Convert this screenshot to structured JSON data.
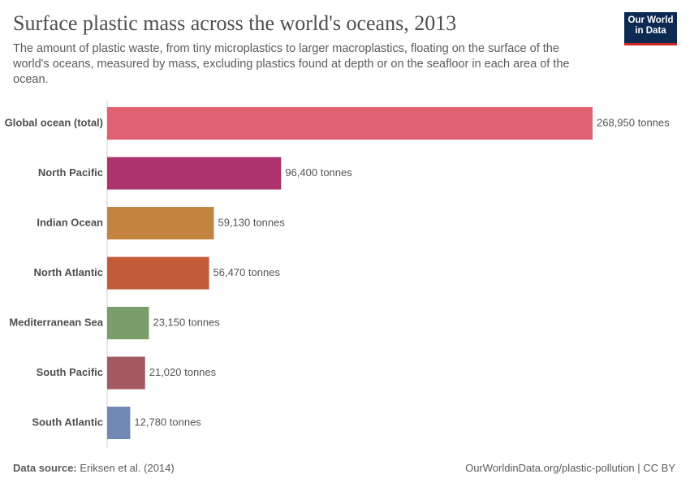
{
  "chart_data": {
    "type": "bar",
    "orientation": "horizontal",
    "title": "Surface plastic mass across the world's oceans, 2013",
    "subtitle": "The amount of plastic waste, from tiny microplastics to larger macroplastics, floating on the surface of the world's oceans, measured by mass, excluding plastics found at depth or on the seafloor in each area of the ocean.",
    "categories": [
      "Global ocean (total)",
      "North Pacific",
      "Indian Ocean",
      "North Atlantic",
      "Mediterranean Sea",
      "South Pacific",
      "South Atlantic"
    ],
    "values": [
      268950,
      96400,
      59130,
      56470,
      23150,
      21020,
      12780
    ],
    "value_labels": [
      "268,950 tonnes",
      "96,400 tonnes",
      "59,130 tonnes",
      "56,470 tonnes",
      "23,150 tonnes",
      "21,020 tonnes",
      "12,780 tonnes"
    ],
    "colors": [
      "#e06272",
      "#ac336b",
      "#c3843f",
      "#c25b38",
      "#7a9e6a",
      "#a35962",
      "#7088b4"
    ],
    "xlim": [
      0,
      268950
    ]
  },
  "logo": [
    "Our World",
    "in Data"
  ],
  "source_label": "Data source:",
  "source": "Eriksen et al. (2014)",
  "url": "OurWorldinData.org/plastic-pollution | CC BY"
}
